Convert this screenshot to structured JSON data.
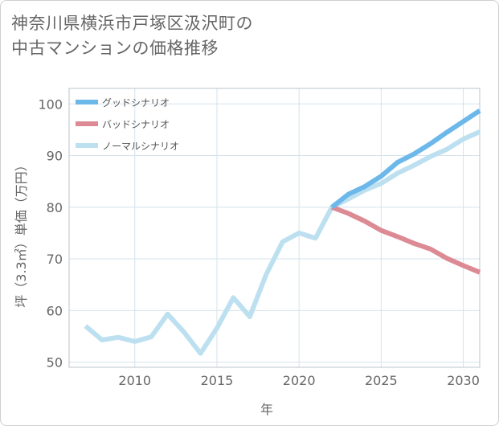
{
  "title_line1": "神奈川県横浜市戸塚区汲沢町の",
  "title_line2": "中古マンションの価格推移",
  "chart_data": {
    "type": "line",
    "xlabel": "年",
    "ylabel": "坪（3.3㎡）単価（万円）",
    "xlim": [
      2006,
      2031
    ],
    "ylim": [
      49,
      103
    ],
    "xticks": [
      2010,
      2015,
      2020,
      2025,
      2030
    ],
    "yticks": [
      50,
      60,
      70,
      80,
      90,
      100
    ],
    "legend_position": "top-left",
    "series": [
      {
        "name": "グッドシナリオ",
        "color": "#6cb8ea",
        "width": 6,
        "x": [
          2022,
          2023,
          2024,
          2025,
          2026,
          2027,
          2028,
          2029,
          2030,
          2031
        ],
        "y": [
          80.0,
          82.5,
          84.0,
          86.0,
          88.7,
          90.3,
          92.3,
          94.5,
          96.6,
          98.7
        ]
      },
      {
        "name": "バッドシナリオ",
        "color": "#dc8a94",
        "width": 6,
        "x": [
          2022,
          2023,
          2024,
          2025,
          2026,
          2027,
          2028,
          2029,
          2030,
          2031
        ],
        "y": [
          80.0,
          78.8,
          77.3,
          75.5,
          74.3,
          73.0,
          71.9,
          70.1,
          68.7,
          67.4
        ]
      },
      {
        "name": "ノーマルシナリオ",
        "color": "#bde0f0",
        "width": 6,
        "x": [
          2007,
          2008,
          2009,
          2010,
          2011,
          2012,
          2013,
          2014,
          2015,
          2016,
          2017,
          2018,
          2019,
          2020,
          2021,
          2022,
          2023,
          2024,
          2025,
          2026,
          2027,
          2028,
          2029,
          2030,
          2031
        ],
        "y": [
          57.0,
          54.3,
          54.8,
          54.0,
          54.9,
          59.3,
          55.8,
          51.7,
          56.6,
          62.5,
          58.8,
          67.0,
          73.3,
          75.0,
          74.0,
          80.0,
          81.6,
          83.3,
          84.6,
          86.6,
          88.1,
          89.8,
          91.2,
          93.2,
          94.6
        ]
      }
    ]
  }
}
